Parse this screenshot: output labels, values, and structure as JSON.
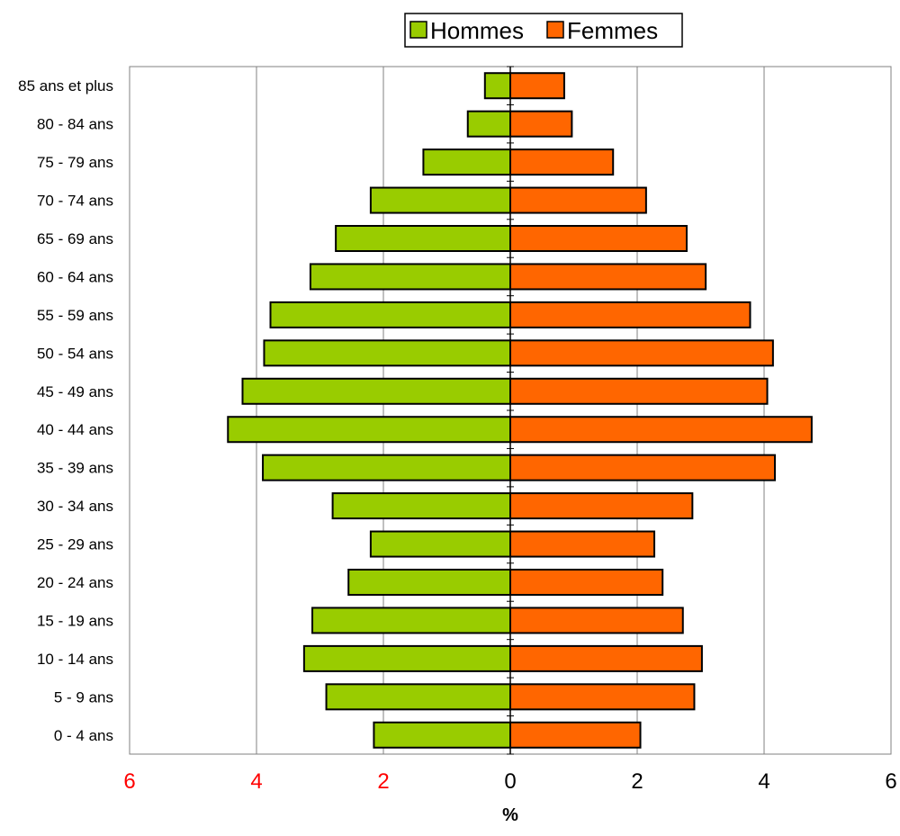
{
  "chart_data": {
    "type": "bar",
    "orientation": "horizontal",
    "categories": [
      "0 - 4 ans",
      "5 - 9 ans",
      "10 - 14 ans",
      "15 - 19 ans",
      "20 - 24 ans",
      "25 - 29 ans",
      "30 - 34 ans",
      "35 - 39 ans",
      "40 - 44 ans",
      "45 - 49 ans",
      "50 - 54 ans",
      "55 - 59 ans",
      "60 - 64 ans",
      "65 - 69 ans",
      "70 - 74 ans",
      "75 - 79 ans",
      "80 - 84 ans",
      "85 ans et plus"
    ],
    "series": [
      {
        "name": "Hommes",
        "color": "#99cc00",
        "values": [
          2.15,
          2.9,
          3.25,
          3.12,
          2.55,
          2.2,
          2.8,
          3.9,
          4.45,
          4.22,
          3.88,
          3.78,
          3.15,
          2.75,
          2.2,
          1.37,
          0.67,
          0.4
        ]
      },
      {
        "name": "Femmes",
        "color": "#ff6600",
        "values": [
          2.05,
          2.9,
          3.02,
          2.72,
          2.4,
          2.27,
          2.87,
          4.17,
          4.75,
          4.05,
          4.14,
          3.78,
          3.08,
          2.78,
          2.14,
          1.62,
          0.97,
          0.85
        ]
      }
    ],
    "xlim": [
      -6,
      6
    ],
    "xticks": [
      {
        "value": -6,
        "label": "6"
      },
      {
        "value": -4,
        "label": "4"
      },
      {
        "value": -2,
        "label": "2"
      },
      {
        "value": 0,
        "label": "0"
      },
      {
        "value": 2,
        "label": "2"
      },
      {
        "value": 4,
        "label": "4"
      },
      {
        "value": 6,
        "label": "6"
      }
    ],
    "negative_tick_color": "#ff0000",
    "positive_tick_color": "#000000",
    "xlabel": "%",
    "ylabel": "",
    "title": "",
    "grid": "vertical",
    "legend_position": "top"
  }
}
